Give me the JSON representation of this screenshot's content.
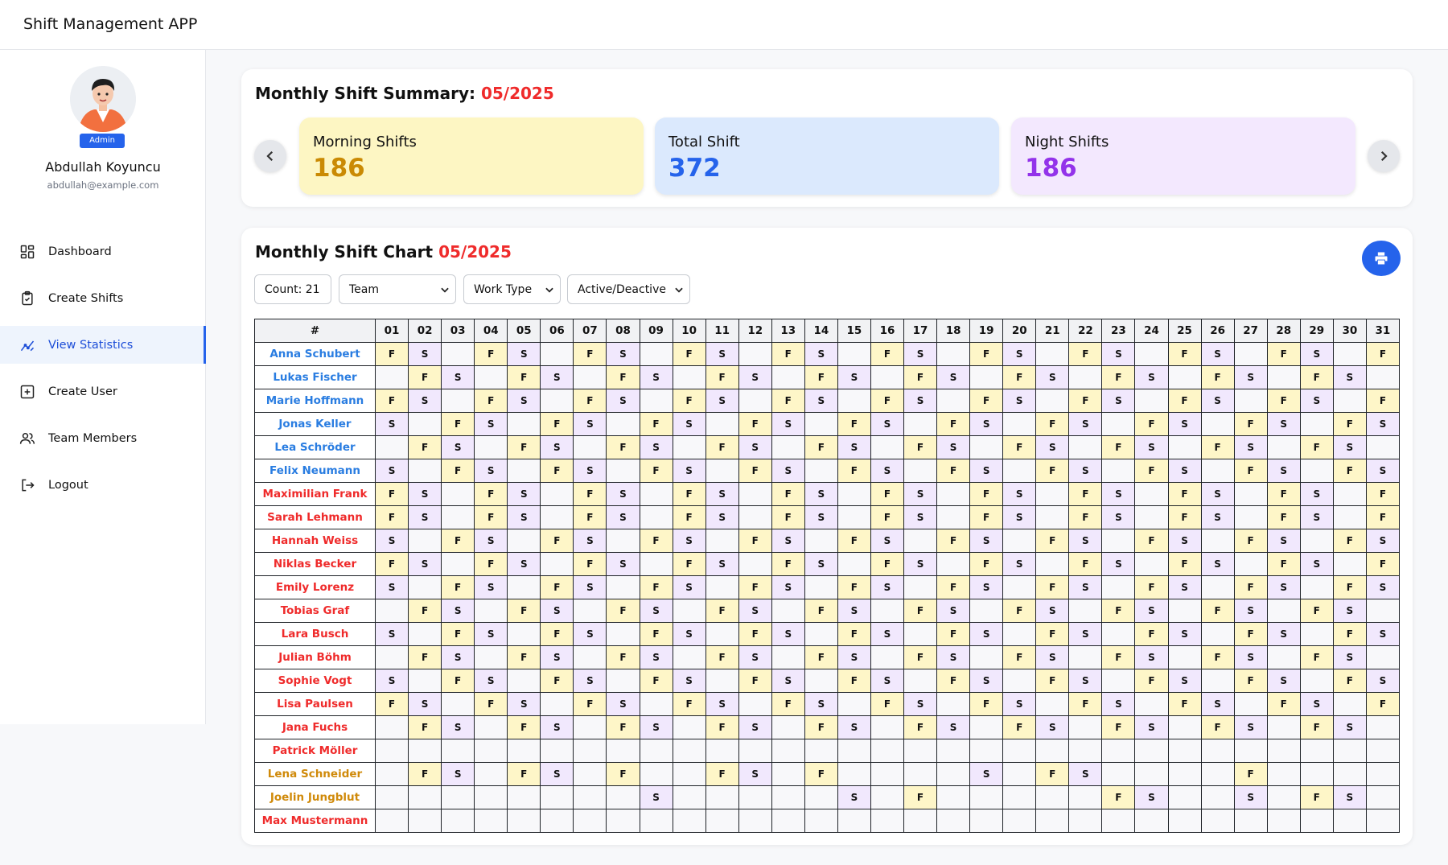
{
  "app": {
    "title": "Shift Management APP"
  },
  "user": {
    "name": "Abdullah Koyuncu",
    "email": "abdullah@example.com",
    "role": "Admin"
  },
  "nav": [
    {
      "label": "Dashboard",
      "icon": "dashboard-icon",
      "active": false
    },
    {
      "label": "Create Shifts",
      "icon": "clipboard-icon",
      "active": false
    },
    {
      "label": "View Statistics",
      "icon": "stats-icon",
      "active": true
    },
    {
      "label": "Create User",
      "icon": "plus-square-icon",
      "active": false
    },
    {
      "label": "Team Members",
      "icon": "users-icon",
      "active": false
    },
    {
      "label": "Logout",
      "icon": "logout-icon",
      "active": false
    }
  ],
  "summary": {
    "title": "Monthly Shift Summary:",
    "month": "05/2025",
    "cards": [
      {
        "label": "Morning Shifts",
        "value": "186",
        "bg": "#fdf6c3",
        "color": "#ca8a04"
      },
      {
        "label": "Total Shift",
        "value": "372",
        "bg": "#dbe9fd",
        "color": "#2563eb"
      },
      {
        "label": "Night Shifts",
        "value": "186",
        "bg": "#f3e8fe",
        "color": "#9333ea"
      }
    ]
  },
  "chart": {
    "title": "Monthly Shift Chart",
    "month": "05/2025",
    "count_label": "Count: 21",
    "filters": [
      "Team",
      "Work Type",
      "Active/Deactive"
    ],
    "header_label": "#",
    "days": [
      "01",
      "02",
      "03",
      "04",
      "05",
      "06",
      "07",
      "08",
      "09",
      "10",
      "11",
      "12",
      "13",
      "14",
      "15",
      "16",
      "17",
      "18",
      "19",
      "20",
      "21",
      "22",
      "23",
      "24",
      "25",
      "26",
      "27",
      "28",
      "29",
      "30",
      "31"
    ],
    "colors": {
      "blue": "#2a7de1",
      "red": "#ef2b2b",
      "gold": "#d08a0a"
    },
    "rows": [
      {
        "name": "Anna Schubert",
        "color": "blue",
        "shifts": "FS-FS-FS-FS-FS-FS-FS-FS-FS-FS-F"
      },
      {
        "name": "Lukas Fischer",
        "color": "blue",
        "shifts": "-FS-FS-FS-FS-FS-FS-FS-FS-FS-FS-"
      },
      {
        "name": "Marie Hoffmann",
        "color": "blue",
        "shifts": "FS-FS-FS-FS-FS-FS-FS-FS-FS-FS-F"
      },
      {
        "name": "Jonas Keller",
        "color": "blue",
        "shifts": "S-FS-FS-FS-FS-FS-FS-FS-FS-FS-FS"
      },
      {
        "name": "Lea Schröder",
        "color": "blue",
        "shifts": "-FS-FS-FS-FS-FS-FS-FS-FS-FS-FS-"
      },
      {
        "name": "Felix Neumann",
        "color": "blue",
        "shifts": "S-FS-FS-FS-FS-FS-FS-FS-FS-FS-FS"
      },
      {
        "name": "Maximilian Frank",
        "color": "red",
        "shifts": "FS-FS-FS-FS-FS-FS-FS-FS-FS-FS-F"
      },
      {
        "name": "Sarah Lehmann",
        "color": "red",
        "shifts": "FS-FS-FS-FS-FS-FS-FS-FS-FS-FS-F"
      },
      {
        "name": "Hannah Weiss",
        "color": "red",
        "shifts": "S-FS-FS-FS-FS-FS-FS-FS-FS-FS-FS"
      },
      {
        "name": "Niklas Becker",
        "color": "red",
        "shifts": "FS-FS-FS-FS-FS-FS-FS-FS-FS-FS-F"
      },
      {
        "name": "Emily Lorenz",
        "color": "red",
        "shifts": "S-FS-FS-FS-FS-FS-FS-FS-FS-FS-FS"
      },
      {
        "name": "Tobias Graf",
        "color": "red",
        "shifts": "-FS-FS-FS-FS-FS-FS-FS-FS-FS-FS-"
      },
      {
        "name": "Lara Busch",
        "color": "red",
        "shifts": "S-FS-FS-FS-FS-FS-FS-FS-FS-FS-FS"
      },
      {
        "name": "Julian Böhm",
        "color": "red",
        "shifts": "-FS-FS-FS-FS-FS-FS-FS-FS-FS-FS-"
      },
      {
        "name": "Sophie Vogt",
        "color": "red",
        "shifts": "S-FS-FS-FS-FS-FS-FS-FS-FS-FS-FS"
      },
      {
        "name": "Lisa Paulsen",
        "color": "red",
        "shifts": "FS-FS-FS-FS-FS-FS-FS-FS-FS-FS-F"
      },
      {
        "name": "Jana Fuchs",
        "color": "red",
        "shifts": "-FS-FS-FS-FS-FS-FS-FS-FS-FS-FS-"
      },
      {
        "name": "Patrick Möller",
        "color": "red",
        "shifts": "-------------------------------"
      },
      {
        "name": "Lena Schneider",
        "color": "gold",
        "shifts": "-FS-FS-F--FS-F----S-FS----F----"
      },
      {
        "name": "Joelin Jungblut",
        "color": "gold",
        "shifts": "--------S-----S-F-----FS--S-FS-"
      },
      {
        "name": "Max Mustermann",
        "color": "red",
        "shifts": "-------------------------------"
      }
    ]
  }
}
